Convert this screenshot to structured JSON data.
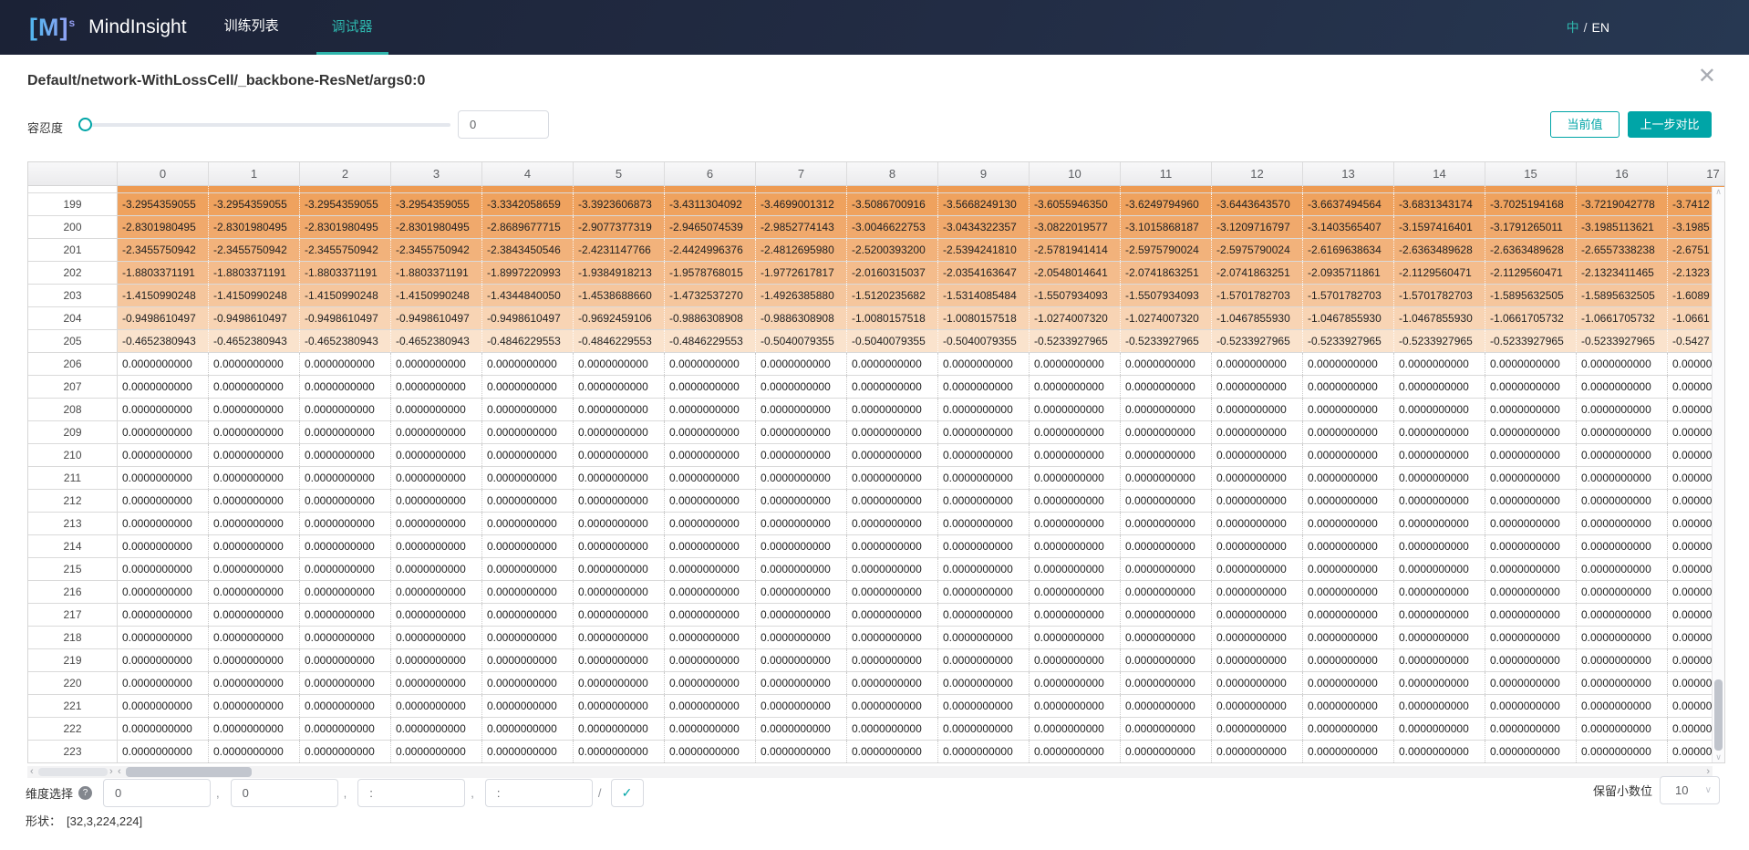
{
  "navbar": {
    "logo": "[M]",
    "logo_sup": "s",
    "brand": "MindInsight",
    "tabs": [
      {
        "label": "训练列表",
        "active": false
      },
      {
        "label": "调试器",
        "active": true
      }
    ],
    "lang_zh": "中",
    "lang_sep": "/",
    "lang_en": "EN"
  },
  "panel": {
    "title": "Default/network-WithLossCell/_backbone-ResNet/args0:0",
    "close_icon": "✕"
  },
  "toolbar": {
    "tolerance_label": "容忍度",
    "tolerance_value": "0",
    "current_button": "当前值",
    "compare_button": "上一步对比"
  },
  "colors": {
    "accent": "#00a5a7",
    "partial_top_row": "#ee9b52"
  },
  "table": {
    "col_headers": [
      "0",
      "1",
      "2",
      "3",
      "4",
      "5",
      "6",
      "7",
      "8",
      "9",
      "10",
      "11",
      "12",
      "13",
      "14",
      "15",
      "16",
      "17"
    ],
    "zero_value": "0.0000000000",
    "rows": [
      {
        "label": "199",
        "bg": "#efa25e",
        "values": [
          "-3.2954359055",
          "-3.2954359055",
          "-3.2954359055",
          "-3.2954359055",
          "-3.3342058659",
          "-3.3923606873",
          "-3.4311304092",
          "-3.4699001312",
          "-3.5086700916",
          "-3.5668249130",
          "-3.6055946350",
          "-3.6249794960",
          "-3.6443643570",
          "-3.6637494564",
          "-3.6831343174",
          "-3.7025194168",
          "-3.7219042778",
          "-3.7412"
        ]
      },
      {
        "label": "200",
        "bg": "#f0a96c",
        "values": [
          "-2.8301980495",
          "-2.8301980495",
          "-2.8301980495",
          "-2.8301980495",
          "-2.8689677715",
          "-2.9077377319",
          "-2.9465074539",
          "-2.9852774143",
          "-3.0046622753",
          "-3.0434322357",
          "-3.0822019577",
          "-3.1015868187",
          "-3.1209716797",
          "-3.1403565407",
          "-3.1597416401",
          "-3.1791265011",
          "-3.1985113621",
          "-3.1985"
        ]
      },
      {
        "label": "201",
        "bg": "#f2b27b",
        "values": [
          "-2.3455750942",
          "-2.3455750942",
          "-2.3455750942",
          "-2.3455750942",
          "-2.3843450546",
          "-2.4231147766",
          "-2.4424996376",
          "-2.4812695980",
          "-2.5200393200",
          "-2.5394241810",
          "-2.5781941414",
          "-2.5975790024",
          "-2.5975790024",
          "-2.6169638634",
          "-2.6363489628",
          "-2.6363489628",
          "-2.6557338238",
          "-2.6751"
        ]
      },
      {
        "label": "202",
        "bg": "#f4bc8c",
        "values": [
          "-1.8803371191",
          "-1.8803371191",
          "-1.8803371191",
          "-1.8803371191",
          "-1.8997220993",
          "-1.9384918213",
          "-1.9578768015",
          "-1.9772617817",
          "-2.0160315037",
          "-2.0354163647",
          "-2.0548014641",
          "-2.0741863251",
          "-2.0741863251",
          "-2.0935711861",
          "-2.1129560471",
          "-2.1129560471",
          "-2.1323411465",
          "-2.1323"
        ]
      },
      {
        "label": "203",
        "bg": "#f5c69d",
        "values": [
          "-1.4150990248",
          "-1.4150990248",
          "-1.4150990248",
          "-1.4150990248",
          "-1.4344840050",
          "-1.4538688660",
          "-1.4732537270",
          "-1.4926385880",
          "-1.5120235682",
          "-1.5314085484",
          "-1.5507934093",
          "-1.5507934093",
          "-1.5701782703",
          "-1.5701782703",
          "-1.5701782703",
          "-1.5895632505",
          "-1.5895632505",
          "-1.6089"
        ]
      },
      {
        "label": "204",
        "bg": "#f8d4b4",
        "values": [
          "-0.9498610497",
          "-0.9498610497",
          "-0.9498610497",
          "-0.9498610497",
          "-0.9498610497",
          "-0.9692459106",
          "-0.9886308908",
          "-0.9886308908",
          "-1.0080157518",
          "-1.0080157518",
          "-1.0274007320",
          "-1.0274007320",
          "-1.0467855930",
          "-1.0467855930",
          "-1.0467855930",
          "-1.0661705732",
          "-1.0661705732",
          "-1.0661"
        ]
      },
      {
        "label": "205",
        "bg": "#fae3cd",
        "values": [
          "-0.4652380943",
          "-0.4652380943",
          "-0.4652380943",
          "-0.4652380943",
          "-0.4846229553",
          "-0.4846229553",
          "-0.4846229553",
          "-0.5040079355",
          "-0.5040079355",
          "-0.5040079355",
          "-0.5233927965",
          "-0.5233927965",
          "-0.5233927965",
          "-0.5233927965",
          "-0.5233927965",
          "-0.5233927965",
          "-0.5233927965",
          "-0.5427"
        ]
      },
      {
        "label": "206",
        "bg": "#ffffff",
        "zeros": true
      },
      {
        "label": "207",
        "bg": "#ffffff",
        "zeros": true
      },
      {
        "label": "208",
        "bg": "#ffffff",
        "zeros": true
      },
      {
        "label": "209",
        "bg": "#ffffff",
        "zeros": true
      },
      {
        "label": "210",
        "bg": "#ffffff",
        "zeros": true
      },
      {
        "label": "211",
        "bg": "#ffffff",
        "zeros": true
      },
      {
        "label": "212",
        "bg": "#ffffff",
        "zeros": true
      },
      {
        "label": "213",
        "bg": "#ffffff",
        "zeros": true
      },
      {
        "label": "214",
        "bg": "#ffffff",
        "zeros": true
      },
      {
        "label": "215",
        "bg": "#ffffff",
        "zeros": true
      },
      {
        "label": "216",
        "bg": "#ffffff",
        "zeros": true
      },
      {
        "label": "217",
        "bg": "#ffffff",
        "zeros": true
      },
      {
        "label": "218",
        "bg": "#ffffff",
        "zeros": true
      },
      {
        "label": "219",
        "bg": "#ffffff",
        "zeros": true
      },
      {
        "label": "220",
        "bg": "#ffffff",
        "zeros": true
      },
      {
        "label": "221",
        "bg": "#ffffff",
        "zeros": true
      },
      {
        "label": "222",
        "bg": "#ffffff",
        "zeros": true
      },
      {
        "label": "223",
        "bg": "#ffffff",
        "zeros": true
      }
    ],
    "scroll": {
      "up_arrow": "∧",
      "down_arrow": "∨",
      "left_arrow": "‹",
      "right_arrow": "›"
    }
  },
  "footer": {
    "dims_label": "维度选择",
    "help_icon": "?",
    "dim_inputs": [
      "0",
      "0",
      ":",
      ":"
    ],
    "dim_separators": [
      ",",
      ",",
      ",",
      "/"
    ],
    "apply_icon": "✓",
    "decimals_label": "保留小数位",
    "decimals_value": "10",
    "decimals_chevron": "∨",
    "shape_label": "形状：",
    "shape_value": "[32,3,224,224]"
  }
}
